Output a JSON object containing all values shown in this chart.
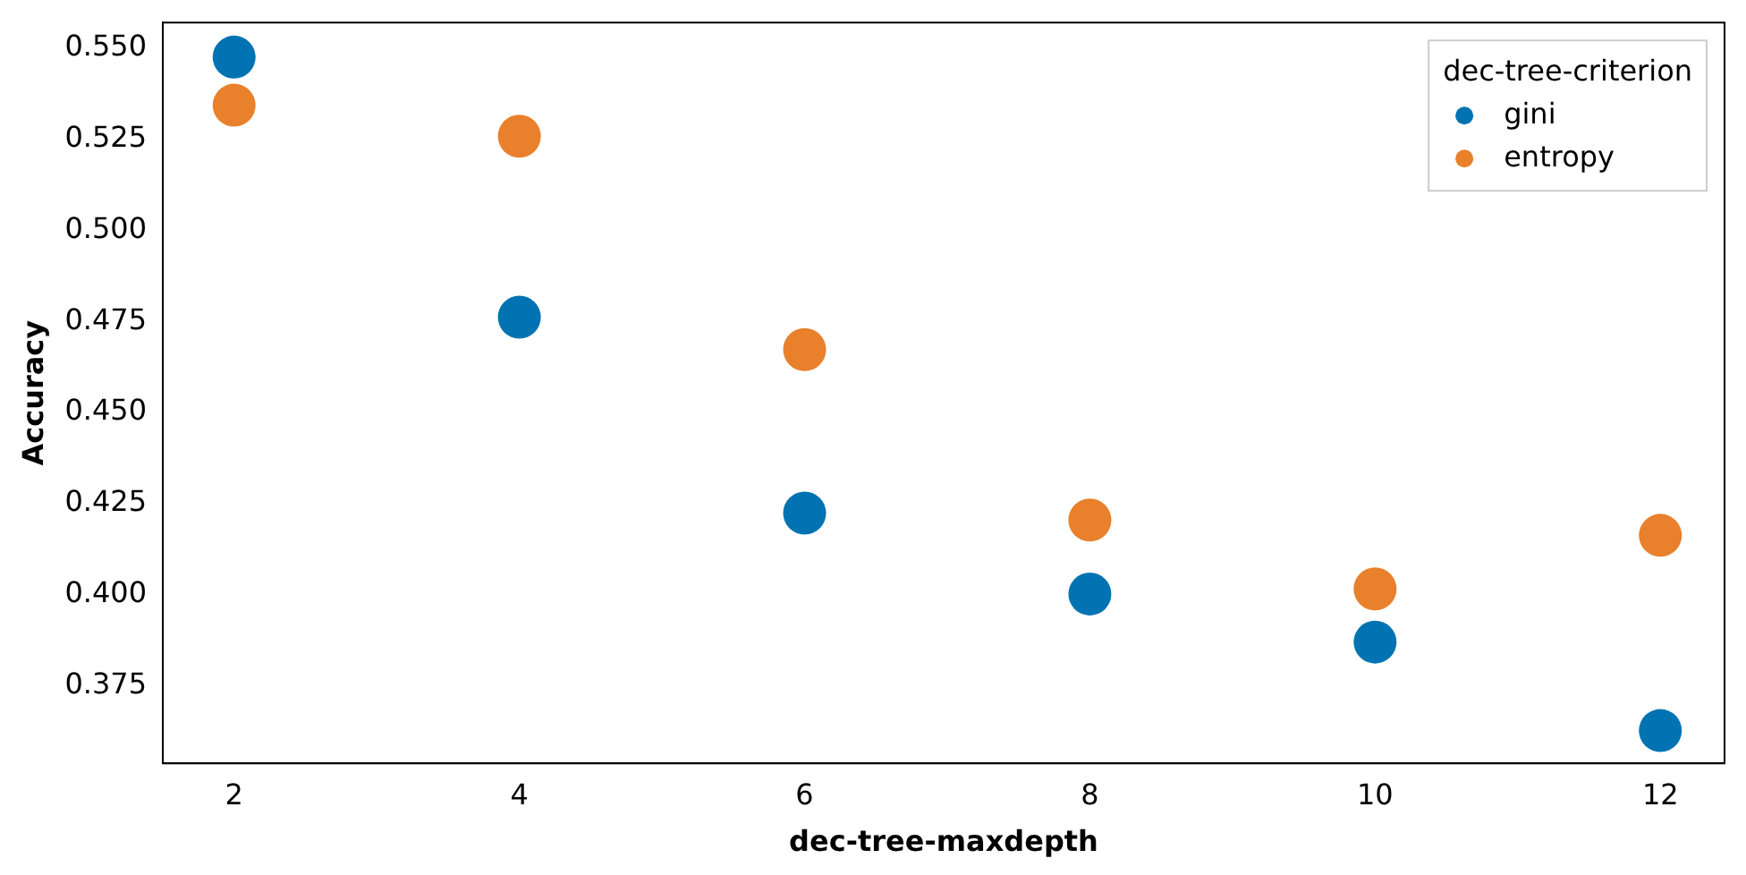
{
  "chart_data": {
    "type": "scatter",
    "xlabel": "dec-tree-maxdepth",
    "ylabel": "Accuracy",
    "legend_title": "dec-tree-criterion",
    "legend": "top right",
    "marker": "circle",
    "grid": false,
    "x": [
      2,
      4,
      6,
      8,
      10,
      12
    ],
    "xlim": [
      1.5,
      12.45
    ],
    "xticks": [
      2,
      4,
      6,
      8,
      10,
      12
    ],
    "ylim": [
      0.3537,
      0.5571
    ],
    "yticks": [
      {
        "value": 0.375,
        "label": "0.375"
      },
      {
        "value": 0.4,
        "label": "0.400"
      },
      {
        "value": 0.425,
        "label": "0.425"
      },
      {
        "value": 0.45,
        "label": "0.450"
      },
      {
        "value": 0.475,
        "label": "0.475"
      },
      {
        "value": 0.5,
        "label": "0.500"
      },
      {
        "value": 0.525,
        "label": "0.525"
      },
      {
        "value": 0.55,
        "label": "0.550"
      }
    ],
    "series": [
      {
        "name": "gini",
        "color": "#0173b2",
        "values": [
          0.5476,
          0.4762,
          0.4224,
          0.4002,
          0.387,
          0.3627
        ]
      },
      {
        "name": "entropy",
        "color": "#e8802c",
        "values": [
          0.5344,
          0.5259,
          0.4673,
          0.4205,
          0.4016,
          0.4163
        ]
      }
    ]
  }
}
